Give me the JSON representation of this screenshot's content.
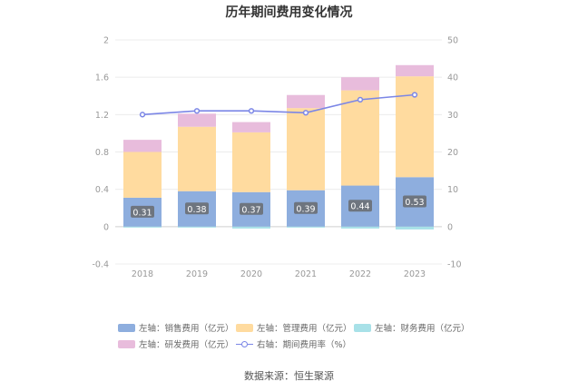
{
  "chart_data": {
    "type": "bar",
    "title": "历年期间费用变化情况",
    "categories": [
      "2018",
      "2019",
      "2020",
      "2021",
      "2022",
      "2023"
    ],
    "left_axis": {
      "min": -0.4,
      "max": 2,
      "ticks": [
        "-0.4",
        "0",
        "0.4",
        "0.8",
        "1.2",
        "1.6",
        "2"
      ]
    },
    "right_axis": {
      "min": -10,
      "max": 50,
      "ticks": [
        "-10",
        "0",
        "10",
        "20",
        "30",
        "40",
        "50"
      ]
    },
    "stacked_series": [
      {
        "name": "左轴：销售费用（亿元）",
        "key": "sales",
        "color": "#8eaede",
        "values": [
          0.31,
          0.38,
          0.37,
          0.39,
          0.44,
          0.53
        ],
        "labels": [
          "0.31",
          "0.38",
          "0.37",
          "0.39",
          "0.44",
          "0.53"
        ]
      },
      {
        "name": "左轴：管理费用（亿元）",
        "key": "admin",
        "color": "#ffdb9f",
        "values": [
          0.49,
          0.69,
          0.64,
          0.88,
          1.02,
          1.08
        ]
      },
      {
        "name": "左轴：财务费用（亿元）",
        "key": "finance",
        "color": "#a8e1e8",
        "values": [
          -0.01,
          -0.01,
          -0.02,
          -0.01,
          -0.02,
          -0.03
        ]
      },
      {
        "name": "左轴：研发费用（亿元）",
        "key": "rd",
        "color": "#e8bcdc",
        "values": [
          0.13,
          0.14,
          0.11,
          0.14,
          0.14,
          0.12
        ]
      }
    ],
    "line_series": {
      "name": "右轴：期间费用率（%）",
      "color": "#7b86e6",
      "values": [
        30.0,
        31.0,
        31.0,
        30.5,
        34.0,
        35.3
      ]
    }
  },
  "legend": {
    "sales": "左轴：销售费用（亿元）",
    "admin": "左轴：管理费用（亿元）",
    "finance": "左轴：财务费用（亿元）",
    "rd": "左轴：研发费用（亿元）",
    "rate": "右轴：期间费用率（%）"
  },
  "source": "数据来源：恒生聚源"
}
